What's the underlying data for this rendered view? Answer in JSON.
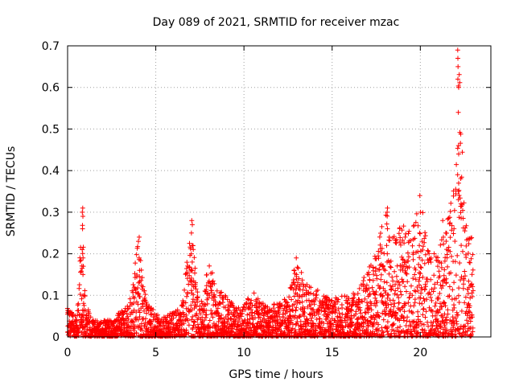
{
  "chart_data": {
    "type": "scatter",
    "title": "Day 089 of 2021, SRMTID for receiver mzac",
    "xlabel": "GPS time / hours",
    "ylabel": "SRMTID / TECUs",
    "xlim": [
      0,
      24
    ],
    "ylim": [
      0,
      0.7
    ],
    "xticks": [
      0,
      5,
      10,
      15,
      20
    ],
    "yticks": [
      0,
      0.1,
      0.2,
      0.3,
      0.4,
      0.5,
      0.6,
      0.7
    ],
    "xtick_labels": [
      "0",
      "5",
      "10",
      "15",
      "20"
    ],
    "ytick_labels": [
      "0",
      "0.1",
      "0.2",
      "0.3",
      "0.4",
      "0.5",
      "0.6",
      "0.7"
    ],
    "grid": true,
    "marker": "+",
    "color": "#ff0000",
    "envelope": [
      [
        0.0,
        0.07
      ],
      [
        0.5,
        0.05
      ],
      [
        0.85,
        0.31
      ],
      [
        1.0,
        0.08
      ],
      [
        1.5,
        0.04
      ],
      [
        2.0,
        0.04
      ],
      [
        2.5,
        0.05
      ],
      [
        3.0,
        0.06
      ],
      [
        3.5,
        0.08
      ],
      [
        4.0,
        0.24
      ],
      [
        4.5,
        0.08
      ],
      [
        5.0,
        0.06
      ],
      [
        5.5,
        0.05
      ],
      [
        6.0,
        0.06
      ],
      [
        6.5,
        0.08
      ],
      [
        7.0,
        0.28
      ],
      [
        7.5,
        0.08
      ],
      [
        8.0,
        0.18
      ],
      [
        8.5,
        0.12
      ],
      [
        9.0,
        0.1
      ],
      [
        9.5,
        0.08
      ],
      [
        10.0,
        0.08
      ],
      [
        10.5,
        0.11
      ],
      [
        11.0,
        0.09
      ],
      [
        11.5,
        0.08
      ],
      [
        12.0,
        0.08
      ],
      [
        12.5,
        0.1
      ],
      [
        13.0,
        0.19
      ],
      [
        13.5,
        0.13
      ],
      [
        14.0,
        0.12
      ],
      [
        14.5,
        0.1
      ],
      [
        15.0,
        0.09
      ],
      [
        15.5,
        0.1
      ],
      [
        16.0,
        0.1
      ],
      [
        16.5,
        0.12
      ],
      [
        17.0,
        0.16
      ],
      [
        17.5,
        0.2
      ],
      [
        18.0,
        0.31
      ],
      [
        18.5,
        0.24
      ],
      [
        19.0,
        0.29
      ],
      [
        19.5,
        0.25
      ],
      [
        20.0,
        0.34
      ],
      [
        20.5,
        0.2
      ],
      [
        21.0,
        0.22
      ],
      [
        21.5,
        0.28
      ],
      [
        22.0,
        0.4
      ],
      [
        22.2,
        0.69
      ],
      [
        22.5,
        0.3
      ],
      [
        23.0,
        0.24
      ]
    ],
    "spikes": [
      {
        "x": 22.15,
        "values": [
          0.69,
          0.67,
          0.65,
          0.62,
          0.6,
          0.54,
          0.46,
          0.44,
          0.39,
          0.37,
          0.35,
          0.33
        ]
      },
      {
        "x": 0.85,
        "values": [
          0.31,
          0.3,
          0.29,
          0.26,
          0.21,
          0.19,
          0.17,
          0.15
        ]
      },
      {
        "x": 7.05,
        "values": [
          0.28,
          0.27,
          0.25,
          0.22,
          0.2,
          0.18,
          0.16
        ]
      },
      {
        "x": 4.05,
        "values": [
          0.24,
          0.23,
          0.19,
          0.16,
          0.13
        ]
      },
      {
        "x": 18.1,
        "values": [
          0.31,
          0.3,
          0.26,
          0.22,
          0.2,
          0.18
        ]
      },
      {
        "x": 20.0,
        "values": [
          0.34,
          0.3,
          0.25
        ]
      },
      {
        "x": 13.0,
        "values": [
          0.19,
          0.15,
          0.12
        ]
      },
      {
        "x": 21.3,
        "values": [
          0.28,
          0.24
        ]
      }
    ]
  }
}
